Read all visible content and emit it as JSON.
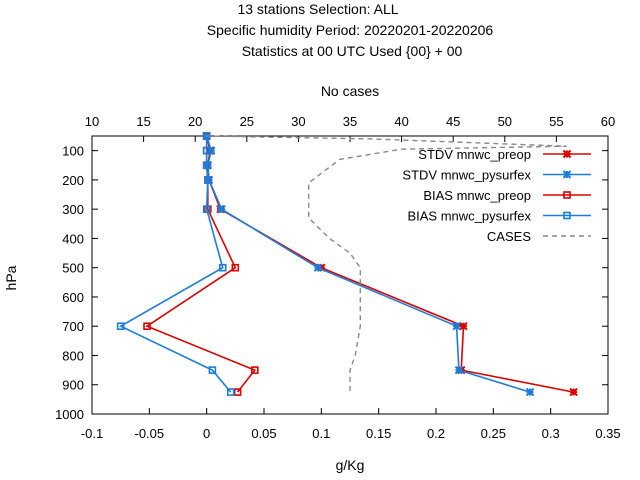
{
  "chart_data": {
    "type": "line",
    "title_lines": [
      "13 stations Selection: ALL",
      "Specific humidity  Period: 20220201-20220206",
      "Statistics at 00 UTC  Used {00} + 00"
    ],
    "xlabel": "g/Kg",
    "ylabel": "hPa",
    "x2label": "No cases",
    "xlim": [
      -0.1,
      0.35
    ],
    "x_ticks": [
      "-0.1",
      "-0.05",
      "0",
      "0.05",
      "0.1",
      "0.15",
      "0.2",
      "0.25",
      "0.3",
      "0.35"
    ],
    "x_tick_values": [
      -0.1,
      -0.05,
      0,
      0.05,
      0.1,
      0.15,
      0.2,
      0.25,
      0.3,
      0.35
    ],
    "x2lim": [
      10,
      60
    ],
    "x2_ticks": [
      "10",
      "15",
      "20",
      "25",
      "30",
      "35",
      "40",
      "45",
      "50",
      "55",
      "60"
    ],
    "x2_tick_values": [
      10,
      15,
      20,
      25,
      30,
      35,
      40,
      45,
      50,
      55,
      60
    ],
    "ylim": [
      1000,
      50
    ],
    "y_ticks": [
      "100",
      "200",
      "300",
      "400",
      "500",
      "600",
      "700",
      "800",
      "900",
      "1000"
    ],
    "y_tick_values": [
      100,
      200,
      300,
      400,
      500,
      600,
      700,
      800,
      900,
      1000
    ],
    "legend_position": "top-right",
    "series": [
      {
        "name": "STDV mnwc_preop",
        "color": "#dd0000",
        "marker": "cross",
        "axis": "x",
        "points": [
          [
            0.0,
            50
          ],
          [
            0.003,
            100
          ],
          [
            0.001,
            150
          ],
          [
            0.002,
            200
          ],
          [
            0.012,
            300
          ],
          [
            0.1,
            500
          ],
          [
            0.224,
            700
          ],
          [
            0.222,
            850
          ],
          [
            0.32,
            925
          ]
        ]
      },
      {
        "name": "STDV mnwc_pysurfex",
        "color": "#1a7ddd",
        "marker": "cross",
        "axis": "x",
        "points": [
          [
            0.0,
            50
          ],
          [
            0.004,
            100
          ],
          [
            0.001,
            150
          ],
          [
            0.002,
            200
          ],
          [
            0.013,
            300
          ],
          [
            0.097,
            500
          ],
          [
            0.218,
            700
          ],
          [
            0.22,
            850
          ],
          [
            0.282,
            925
          ]
        ]
      },
      {
        "name": "BIAS mnwc_preop",
        "color": "#dd0000",
        "marker": "square",
        "axis": "x",
        "points": [
          [
            0.0,
            50
          ],
          [
            0.0,
            100
          ],
          [
            0.0,
            150
          ],
          [
            0.001,
            200
          ],
          [
            0.001,
            300
          ],
          [
            0.025,
            500
          ],
          [
            -0.052,
            700
          ],
          [
            0.042,
            850
          ],
          [
            0.027,
            925
          ]
        ]
      },
      {
        "name": "BIAS mnwc_pysurfex",
        "color": "#1a7ddd",
        "marker": "square",
        "axis": "x",
        "points": [
          [
            0.0,
            50
          ],
          [
            0.0,
            100
          ],
          [
            0.0,
            150
          ],
          [
            0.001,
            200
          ],
          [
            0.0,
            300
          ],
          [
            0.014,
            500
          ],
          [
            -0.075,
            700
          ],
          [
            0.005,
            850
          ],
          [
            0.021,
            925
          ]
        ]
      },
      {
        "name": "CASES",
        "color": "#888888",
        "marker": "none",
        "dashed": true,
        "axis": "x2",
        "points": [
          [
            21,
            50
          ],
          [
            37,
            60
          ],
          [
            56,
            85
          ],
          [
            40,
            95
          ],
          [
            34,
            130
          ],
          [
            31,
            210
          ],
          [
            31,
            330
          ],
          [
            33,
            400
          ],
          [
            35,
            450
          ],
          [
            36,
            500
          ],
          [
            36,
            700
          ],
          [
            35.5,
            800
          ],
          [
            35,
            850
          ],
          [
            35,
            925
          ]
        ]
      }
    ]
  }
}
